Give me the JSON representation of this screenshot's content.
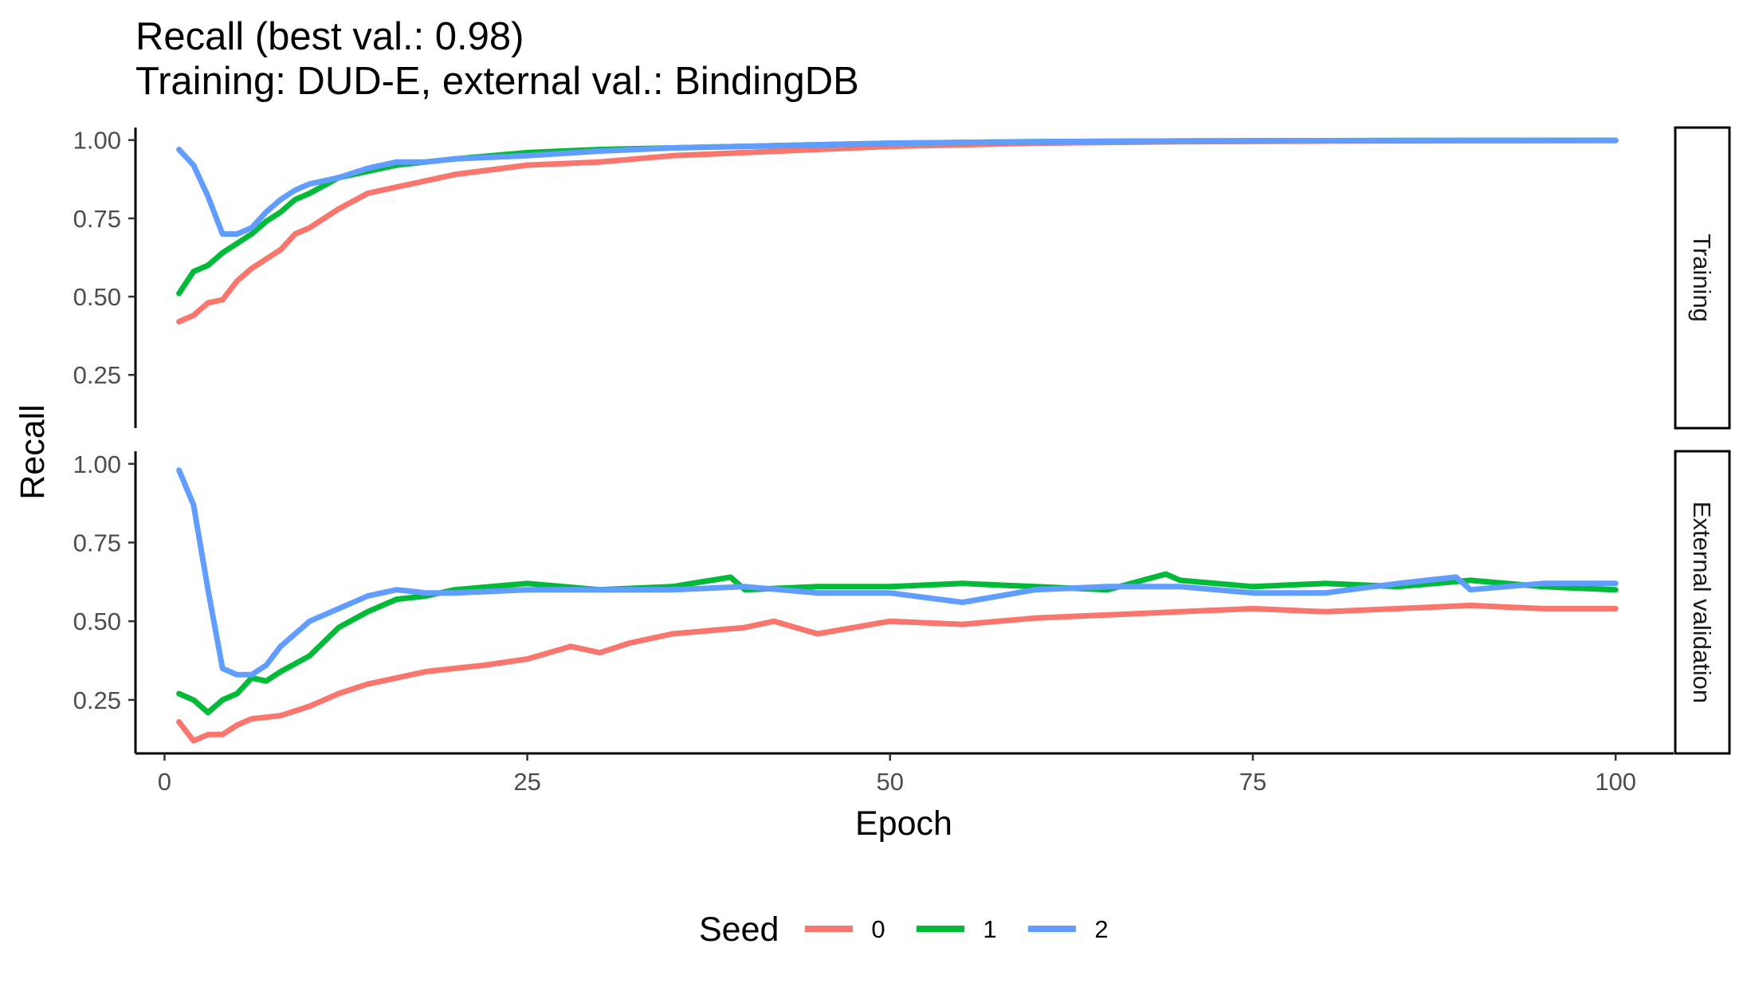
{
  "chart_data": {
    "type": "line",
    "title": "Recall (best val.: 0.98)",
    "subtitle": "Training: DUD-E, external val.: BindingDB",
    "xlabel": "Epoch",
    "ylabel": "Recall",
    "xlim": [
      -2,
      104
    ],
    "ylim": [
      0.08,
      1.04
    ],
    "x_ticks": [
      0,
      25,
      50,
      75,
      100
    ],
    "x_tick_labels": [
      "0",
      "25",
      "50",
      "75",
      "100"
    ],
    "y_ticks": [
      0.25,
      0.5,
      0.75,
      1.0
    ],
    "y_tick_labels": [
      "0.25",
      "0.50",
      "0.75",
      "1.00"
    ],
    "grid": false,
    "legend": {
      "title": "Seed",
      "position": "bottom"
    },
    "series_colors": {
      "0": "#F8766D",
      "1": "#00BA38",
      "2": "#619CFF"
    },
    "facets": [
      {
        "label": "Training",
        "series": [
          {
            "name": "0",
            "x": [
              1,
              2,
              3,
              4,
              5,
              6,
              7,
              8,
              9,
              10,
              12,
              14,
              16,
              18,
              20,
              25,
              30,
              35,
              40,
              45,
              50,
              60,
              70,
              80,
              90,
              100
            ],
            "y": [
              0.42,
              0.44,
              0.48,
              0.49,
              0.55,
              0.59,
              0.62,
              0.65,
              0.7,
              0.72,
              0.78,
              0.83,
              0.85,
              0.87,
              0.89,
              0.92,
              0.93,
              0.95,
              0.96,
              0.97,
              0.98,
              0.99,
              0.995,
              0.997,
              0.998,
              0.999
            ]
          },
          {
            "name": "1",
            "x": [
              1,
              2,
              3,
              4,
              5,
              6,
              7,
              8,
              9,
              10,
              12,
              14,
              16,
              18,
              20,
              25,
              30,
              35,
              40,
              45,
              50,
              60,
              70,
              80,
              90,
              100
            ],
            "y": [
              0.51,
              0.58,
              0.6,
              0.64,
              0.67,
              0.7,
              0.74,
              0.77,
              0.81,
              0.83,
              0.88,
              0.9,
              0.92,
              0.93,
              0.94,
              0.96,
              0.97,
              0.975,
              0.98,
              0.985,
              0.99,
              0.995,
              0.997,
              0.998,
              0.999,
              0.999
            ]
          },
          {
            "name": "2",
            "x": [
              1,
              2,
              3,
              4,
              5,
              6,
              7,
              8,
              9,
              10,
              12,
              14,
              16,
              18,
              20,
              25,
              30,
              35,
              40,
              45,
              50,
              60,
              70,
              80,
              90,
              100
            ],
            "y": [
              0.97,
              0.92,
              0.82,
              0.7,
              0.7,
              0.72,
              0.77,
              0.81,
              0.84,
              0.86,
              0.88,
              0.91,
              0.93,
              0.93,
              0.94,
              0.95,
              0.965,
              0.975,
              0.98,
              0.985,
              0.99,
              0.995,
              0.997,
              0.998,
              0.999,
              0.999
            ]
          }
        ]
      },
      {
        "label": "External validation",
        "series": [
          {
            "name": "0",
            "x": [
              1,
              2,
              3,
              4,
              5,
              6,
              8,
              10,
              12,
              14,
              16,
              18,
              20,
              22,
              25,
              28,
              30,
              32,
              35,
              40,
              42,
              45,
              50,
              55,
              60,
              65,
              70,
              75,
              80,
              85,
              90,
              95,
              100
            ],
            "y": [
              0.18,
              0.12,
              0.14,
              0.14,
              0.17,
              0.19,
              0.2,
              0.23,
              0.27,
              0.3,
              0.32,
              0.34,
              0.35,
              0.36,
              0.38,
              0.42,
              0.4,
              0.43,
              0.46,
              0.48,
              0.5,
              0.46,
              0.5,
              0.49,
              0.51,
              0.52,
              0.53,
              0.54,
              0.53,
              0.54,
              0.55,
              0.54,
              0.54
            ]
          },
          {
            "name": "1",
            "x": [
              1,
              2,
              3,
              4,
              5,
              6,
              7,
              8,
              10,
              12,
              14,
              16,
              18,
              20,
              25,
              30,
              35,
              39,
              40,
              45,
              50,
              55,
              60,
              65,
              69,
              70,
              75,
              80,
              85,
              90,
              95,
              100
            ],
            "y": [
              0.27,
              0.25,
              0.21,
              0.25,
              0.27,
              0.32,
              0.31,
              0.34,
              0.39,
              0.48,
              0.53,
              0.57,
              0.58,
              0.6,
              0.62,
              0.6,
              0.61,
              0.64,
              0.6,
              0.61,
              0.61,
              0.62,
              0.61,
              0.6,
              0.65,
              0.63,
              0.61,
              0.62,
              0.61,
              0.63,
              0.61,
              0.6
            ]
          },
          {
            "name": "2",
            "x": [
              1,
              2,
              3,
              4,
              5,
              6,
              7,
              8,
              10,
              12,
              14,
              16,
              18,
              20,
              25,
              30,
              35,
              40,
              45,
              50,
              55,
              60,
              65,
              70,
              75,
              80,
              85,
              89,
              90,
              95,
              100
            ],
            "y": [
              0.98,
              0.87,
              0.6,
              0.35,
              0.33,
              0.33,
              0.36,
              0.42,
              0.5,
              0.54,
              0.58,
              0.6,
              0.59,
              0.59,
              0.6,
              0.6,
              0.6,
              0.61,
              0.59,
              0.59,
              0.56,
              0.6,
              0.61,
              0.61,
              0.59,
              0.59,
              0.62,
              0.64,
              0.6,
              0.62,
              0.62
            ]
          }
        ]
      }
    ]
  }
}
